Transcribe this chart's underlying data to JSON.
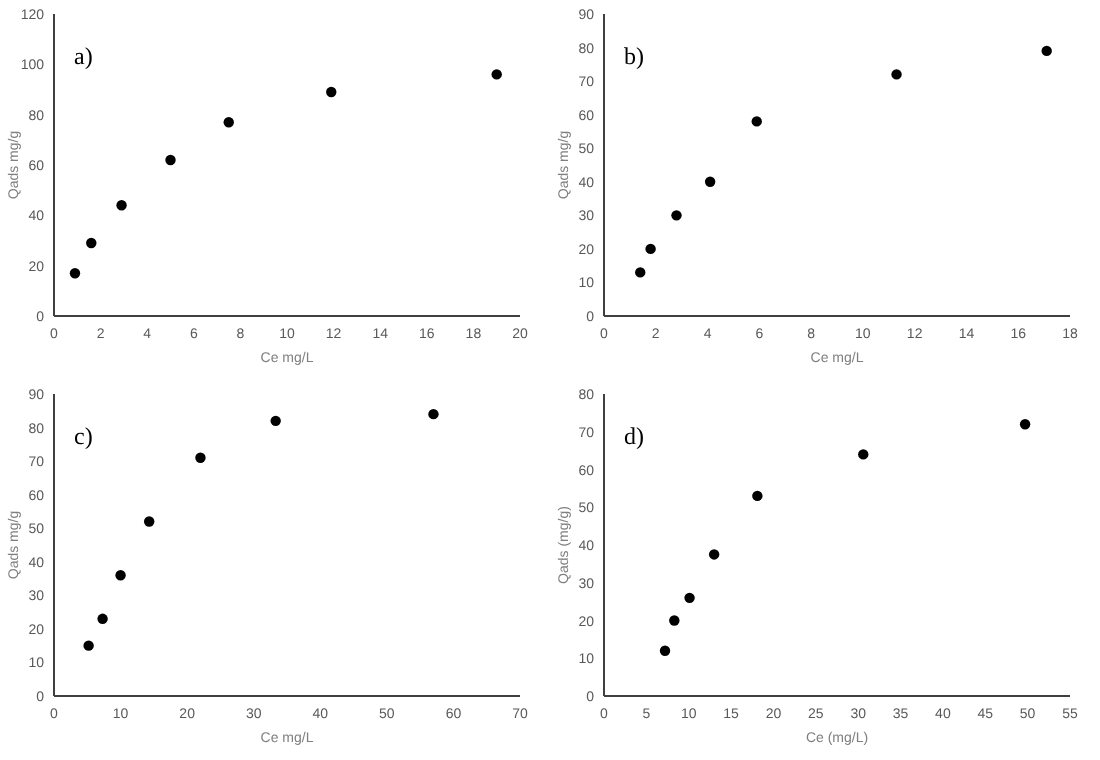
{
  "chart_data": [
    {
      "type": "scatter",
      "annotations": [
        "a)"
      ],
      "xlabel": "Ce mg/L",
      "ylabel": "Qads mg/g",
      "marker": "circle",
      "grid": false,
      "series": [
        {
          "color": "#000000",
          "x": [
            0.9,
            1.6,
            2.9,
            5,
            7.5,
            11.9,
            19
          ],
          "values": [
            17,
            29,
            44,
            62,
            77,
            89,
            96
          ]
        }
      ],
      "xlim": [
        0,
        20
      ],
      "xticks": [
        0,
        2,
        4,
        6,
        8,
        10,
        12,
        14,
        16,
        18,
        20
      ],
      "ylim": [
        0,
        120
      ],
      "yticks": [
        0,
        20,
        40,
        60,
        80,
        100,
        120
      ]
    },
    {
      "type": "scatter",
      "annotations": [
        "b)"
      ],
      "xlabel": "Ce mg/L",
      "ylabel": "Qads mg/g",
      "marker": "circle",
      "grid": false,
      "series": [
        {
          "color": "#000000",
          "x": [
            1.4,
            1.8,
            2.8,
            4.1,
            5.9,
            11.3,
            17.1
          ],
          "values": [
            13,
            20,
            30,
            40,
            58,
            72,
            79
          ]
        }
      ],
      "xlim": [
        0,
        18
      ],
      "xticks": [
        0,
        2,
        4,
        6,
        8,
        10,
        12,
        14,
        16,
        18
      ],
      "ylim": [
        0,
        90
      ],
      "yticks": [
        0,
        10,
        20,
        30,
        40,
        50,
        60,
        70,
        80,
        90
      ]
    },
    {
      "type": "scatter",
      "annotations": [
        "c)"
      ],
      "xlabel": "Ce mg/L",
      "ylabel": "Qads mg/g",
      "marker": "circle",
      "grid": false,
      "series": [
        {
          "color": "#000000",
          "x": [
            5.2,
            7.3,
            10,
            14.3,
            22,
            33.3,
            57
          ],
          "values": [
            15,
            23,
            36,
            52,
            71,
            82,
            84
          ]
        }
      ],
      "xlim": [
        0,
        70
      ],
      "xticks": [
        0,
        10,
        20,
        30,
        40,
        50,
        60,
        70
      ],
      "ylim": [
        0,
        90
      ],
      "yticks": [
        0,
        10,
        20,
        30,
        40,
        50,
        60,
        70,
        80,
        90
      ]
    },
    {
      "type": "scatter",
      "annotations": [
        "d)"
      ],
      "xlabel": "Ce (mg/L)",
      "ylabel": "Qads (mg/g)",
      "marker": "circle",
      "grid": false,
      "series": [
        {
          "color": "#000000",
          "x": [
            7.2,
            8.3,
            10.1,
            13,
            18.1,
            30.6,
            49.7
          ],
          "values": [
            12,
            20,
            26,
            37.5,
            53,
            64,
            72
          ]
        }
      ],
      "xlim": [
        0,
        55
      ],
      "xticks": [
        0,
        5,
        10,
        15,
        20,
        25,
        30,
        35,
        40,
        45,
        50,
        55
      ],
      "ylim": [
        0,
        80
      ],
      "yticks": [
        0,
        10,
        20,
        30,
        40,
        50,
        60,
        70,
        80
      ]
    }
  ]
}
